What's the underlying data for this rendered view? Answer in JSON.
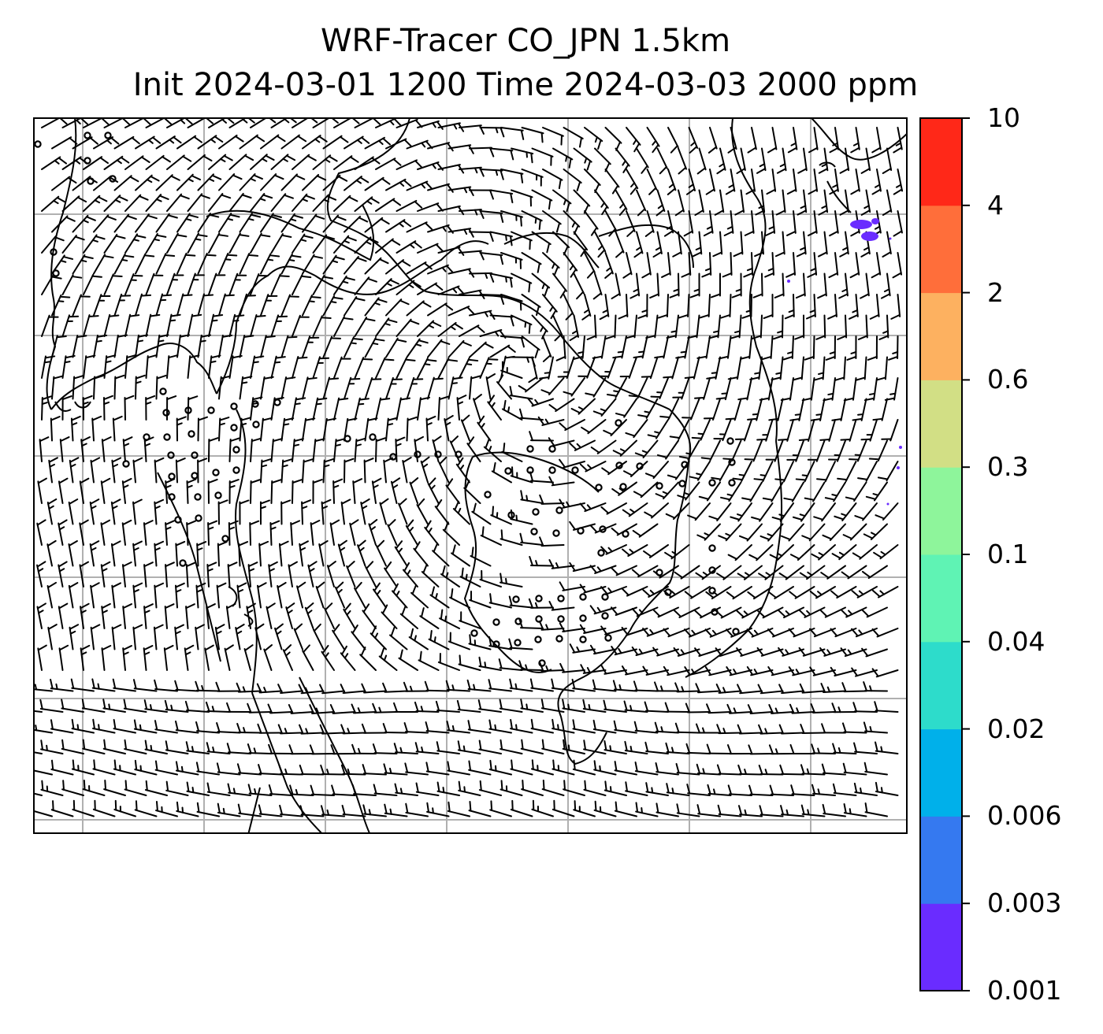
{
  "title": {
    "line1": "WRF-Tracer CO_JPN 1.5km",
    "line2": "Init 2024-03-01 1200 Time 2024-03-03 2000 ppm"
  },
  "colorbar": {
    "levels": [
      "0.001",
      "0.003",
      "0.006",
      "0.02",
      "0.04",
      "0.1",
      "0.3",
      "0.6",
      "2",
      "4",
      "10"
    ],
    "colors": [
      "#6a2cff",
      "#3579f0",
      "#00b0ea",
      "#2ddccb",
      "#5ff3b4",
      "#8ef59b",
      "#d2df85",
      "#fdb160",
      "#ff6e3a",
      "#ff2818"
    ]
  },
  "map_style": {
    "grid_color": "#b0b0b0",
    "coast_color": "#000000",
    "plume_color": "#6a2cff"
  }
}
